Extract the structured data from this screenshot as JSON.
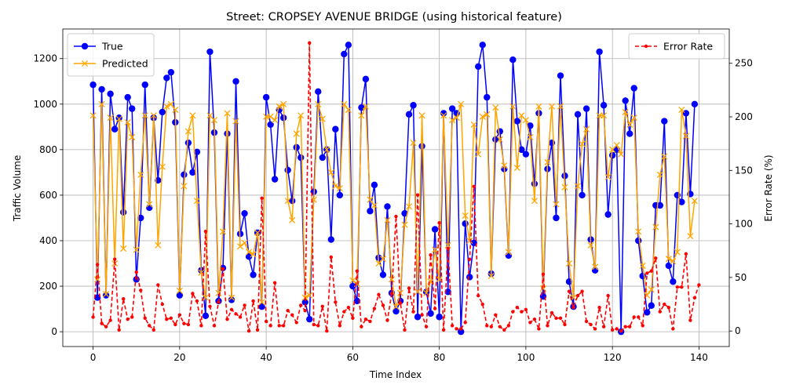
{
  "chart_data": {
    "type": "line",
    "title": "Street: CROPSEY AVENUE BRIDGE (using historical feature)",
    "xlabel": "Time Index",
    "ylabel": "Traffic Volume",
    "y2label": "Error Rate (%)",
    "xlim": [
      -7,
      147
    ],
    "ylim": [
      -65,
      1330
    ],
    "y2lim": [
      -14.5,
      282
    ],
    "xticks": [
      0,
      20,
      40,
      60,
      80,
      100,
      120,
      140
    ],
    "yticks": [
      0,
      200,
      400,
      600,
      800,
      1000,
      1200
    ],
    "y2ticks": [
      0,
      50,
      100,
      150,
      200,
      250
    ],
    "grid": true,
    "legend_left_position": "upper-left",
    "legend_right_position": "upper-right",
    "series": [
      {
        "name": "True",
        "axis": "left",
        "color": "#0000ff",
        "style": "solid",
        "marker": "circle",
        "values": [
          1085,
          150,
          1065,
          160,
          1045,
          890,
          940,
          525,
          1030,
          980,
          230,
          500,
          1085,
          545,
          940,
          665,
          965,
          1115,
          1140,
          920,
          160,
          690,
          830,
          700,
          790,
          270,
          70,
          1230,
          875,
          135,
          280,
          870,
          140,
          1100,
          430,
          520,
          330,
          250,
          435,
          110,
          1030,
          910,
          670,
          975,
          940,
          710,
          575,
          810,
          765,
          130,
          55,
          615,
          1055,
          765,
          800,
          405,
          890,
          600,
          1220,
          1260,
          200,
          135,
          985,
          1110,
          530,
          645,
          325,
          250,
          550,
          170,
          90,
          135,
          520,
          955,
          995,
          65,
          815,
          175,
          80,
          450,
          65,
          960,
          175,
          980,
          960,
          0,
          475,
          240,
          390,
          1165,
          1260,
          1030,
          255,
          845,
          880,
          715,
          335,
          1195,
          925,
          800,
          780,
          905,
          650,
          960,
          155,
          715,
          830,
          500,
          1125,
          685,
          220,
          110,
          955,
          600,
          980,
          405,
          270,
          1230,
          995,
          515,
          775,
          800,
          0,
          1015,
          870,
          1070,
          400,
          245,
          85,
          115,
          555,
          555,
          925,
          290,
          220,
          600,
          570,
          960,
          605,
          1000
        ]
      },
      {
        "name": "Predicted",
        "axis": "left",
        "color": "#ffa500",
        "style": "solid",
        "marker": "x",
        "values": [
          950,
          230,
          1000,
          165,
          940,
          300,
          935,
          365,
          920,
          855,
          360,
          690,
          950,
          560,
          950,
          380,
          725,
          990,
          1000,
          975,
          180,
          640,
          880,
          950,
          575,
          260,
          150,
          950,
          930,
          170,
          440,
          960,
          150,
          925,
          375,
          390,
          350,
          340,
          435,
          130,
          945,
          945,
          930,
          990,
          1000,
          575,
          490,
          870,
          950,
          150,
          160,
          580,
          1000,
          935,
          800,
          700,
          640,
          630,
          1000,
          975,
          225,
          210,
          950,
          990,
          580,
          555,
          300,
          320,
          490,
          230,
          110,
          170,
          470,
          550,
          830,
          175,
          950,
          170,
          220,
          360,
          230,
          950,
          380,
          930,
          940,
          1000,
          510,
          400,
          910,
          780,
          945,
          955,
          245,
          985,
          845,
          730,
          350,
          990,
          720,
          950,
          930,
          855,
          575,
          990,
          190,
          745,
          990,
          560,
          990,
          635,
          300,
          150,
          640,
          825,
          890,
          380,
          285,
          950,
          950,
          680,
          800,
          820,
          780,
          965,
          910,
          940,
          440,
          290,
          160,
          185,
          460,
          690,
          770,
          320,
          310,
          350,
          975,
          860,
          420,
          575
        ]
      },
      {
        "name": "Error Rate",
        "axis": "right",
        "color": "#ff0000",
        "style": "dashed",
        "marker": "dot",
        "values": [
          13,
          62,
          7,
          4,
          10,
          67,
          1,
          30,
          11,
          13,
          55,
          38,
          12,
          5,
          1,
          43,
          25,
          11,
          12,
          6,
          15,
          7,
          6,
          35,
          28,
          5,
          93,
          23,
          5,
          27,
          58,
          11,
          20,
          16,
          13,
          24,
          0,
          28,
          1,
          124,
          9,
          5,
          45,
          5,
          5,
          19,
          15,
          8,
          24,
          19,
          269,
          6,
          5,
          23,
          0,
          69,
          27,
          5,
          18,
          22,
          12,
          56,
          4,
          11,
          9,
          21,
          34,
          24,
          10,
          35,
          107,
          26,
          1,
          40,
          18,
          127,
          15,
          4,
          71,
          21,
          101,
          1,
          77,
          5,
          2,
          2,
          8,
          67,
          135,
          33,
          25,
          5,
          4,
          15,
          4,
          1,
          5,
          18,
          22,
          18,
          20,
          8,
          11,
          2,
          53,
          5,
          17,
          12,
          12,
          6,
          37,
          22,
          33,
          37,
          9,
          6,
          2,
          22,
          4,
          33,
          1,
          2,
          0,
          4,
          4,
          13,
          13,
          5,
          54,
          56,
          68,
          18,
          25,
          22,
          2,
          41,
          41,
          72,
          10,
          31,
          43
        ]
      }
    ]
  }
}
